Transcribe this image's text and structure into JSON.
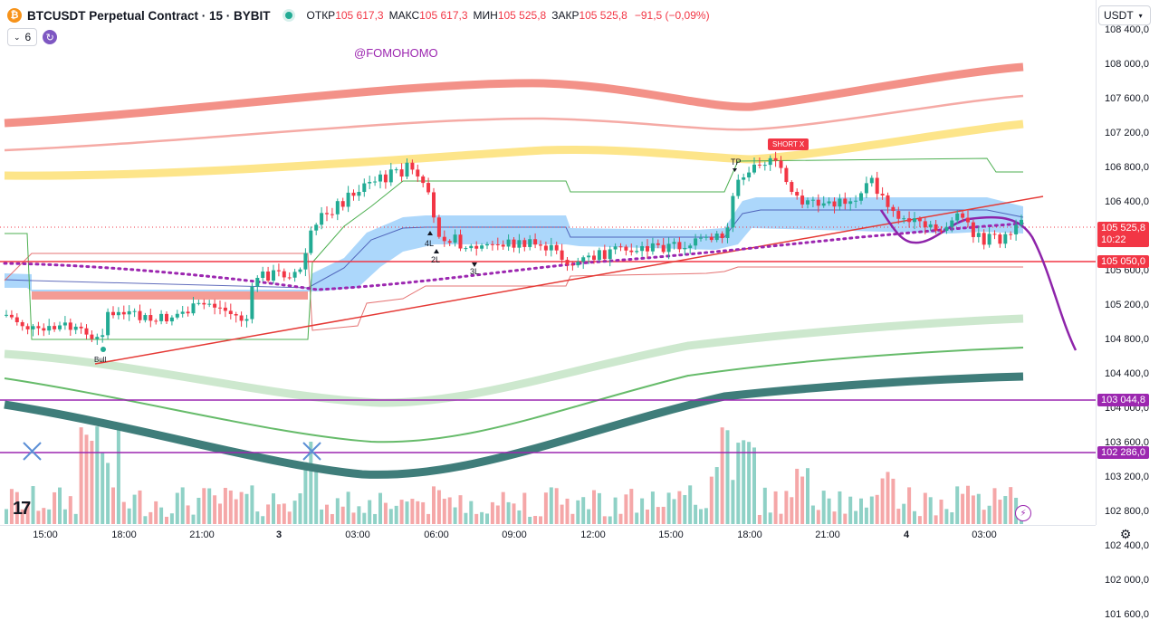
{
  "header": {
    "symbol_logo": "₿",
    "title": "BTCUSDT Perpetual Contract · 15 · BYBIT",
    "open_label": "ОТКР",
    "open_value": "105 617,3",
    "high_label": "МАКС",
    "high_value": "105 617,3",
    "low_label": "МИН",
    "low_value": "105 525,8",
    "close_label": "ЗАКР",
    "close_value": "105 525,8",
    "change": "−91,5 (−0,09%)"
  },
  "indicators": {
    "count": "6"
  },
  "currency": "USDT",
  "watermark": "@FOMOHOMO",
  "logo": "17",
  "price_axis": [
    "108 400,0",
    "108 000,0",
    "107 600,0",
    "107 200,0",
    "106 800,0",
    "106 400,0",
    "106 000,0",
    "105 600,0",
    "105 200,0",
    "104 800,0",
    "104 400,0",
    "104 000,0",
    "103 600,0",
    "103 200,0",
    "102 800,0",
    "102 400,0",
    "102 000,0",
    "101 600,0"
  ],
  "price_tags": {
    "last_price": "105 525,8",
    "countdown": "10:22",
    "level_1": "105 050,0",
    "level_2": "103 044,8",
    "level_3": "102 286,0"
  },
  "time_axis": [
    "15:00",
    "18:00",
    "21:00",
    "3",
    "03:00",
    "06:00",
    "09:00",
    "12:00",
    "15:00",
    "18:00",
    "21:00",
    "4",
    "03:00"
  ],
  "annotations": {
    "short": "SHORT X",
    "tp": "TP",
    "l4": "4L",
    "l2": "2L",
    "l3": "3L",
    "bull": "Bull"
  },
  "colors": {
    "up": "#22ab94",
    "down": "#f23645",
    "purple": "#9c27b0",
    "cloud": "#64b5f6"
  }
}
